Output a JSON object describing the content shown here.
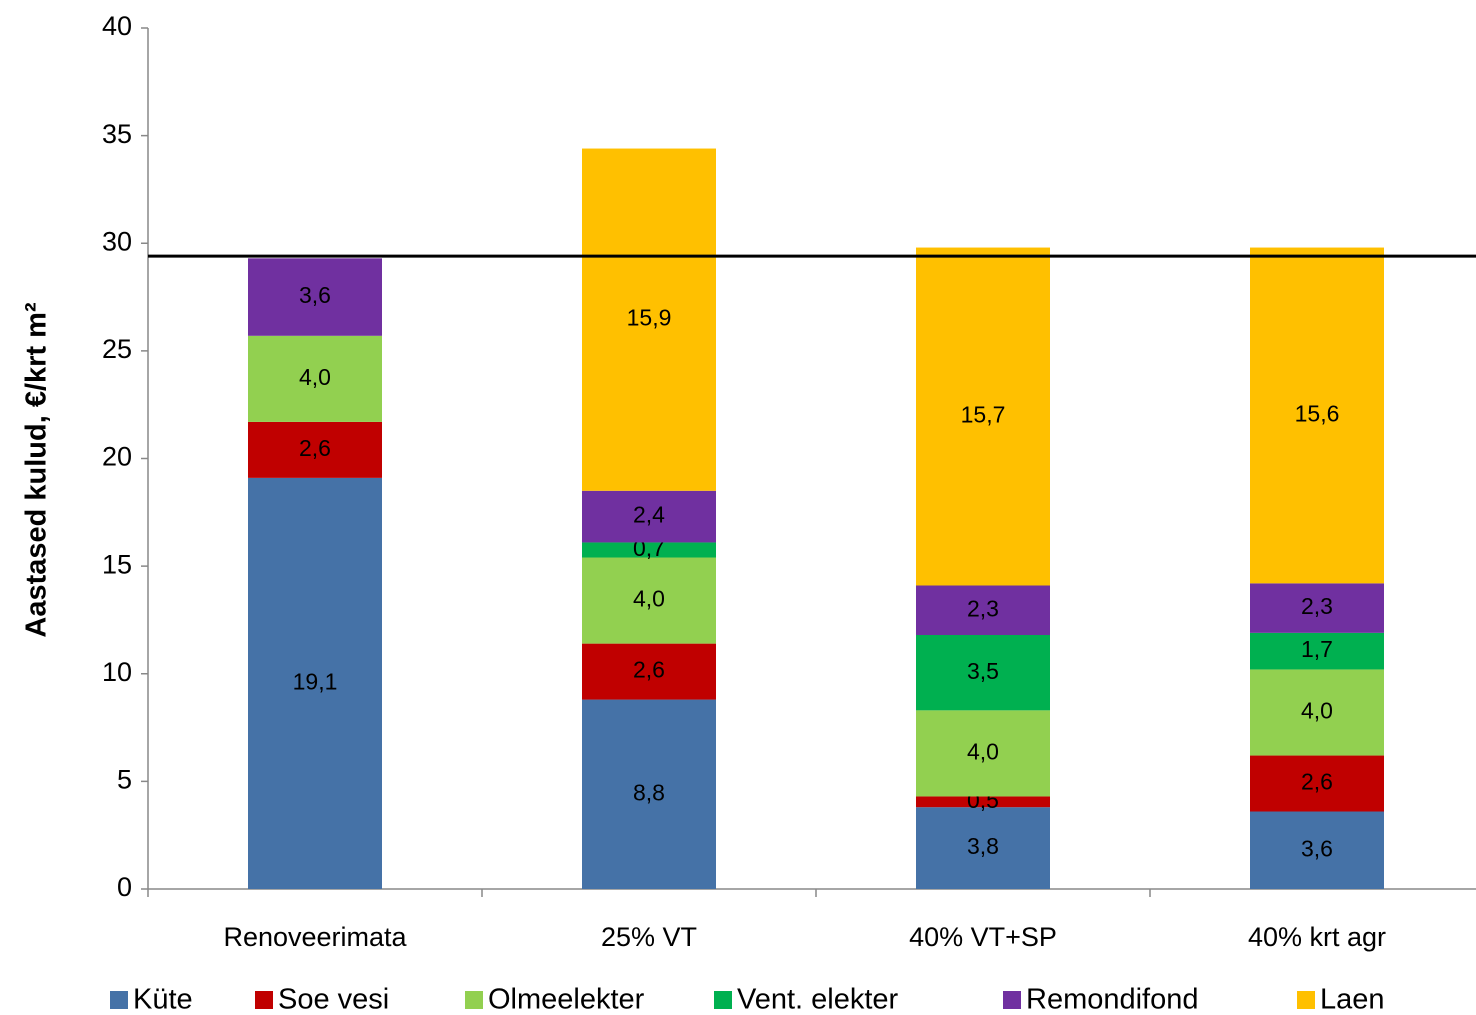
{
  "chart_data": {
    "type": "stacked_bar",
    "y_label": "Aastased kulud, €/krt m²",
    "categories": [
      "Renoveerimata",
      "25% VT",
      "40% VT+SP",
      "40% krt agr"
    ],
    "series": [
      {
        "name": "Küte",
        "color": "#4572a7",
        "values": [
          19.1,
          8.8,
          3.8,
          3.6
        ],
        "value_labels": [
          "19,1",
          "8,8",
          "3,8",
          "3,6"
        ]
      },
      {
        "name": "Soe vesi",
        "color": "#c00000",
        "values": [
          2.6,
          2.6,
          0.5,
          2.6
        ],
        "value_labels": [
          "2,6",
          "2,6",
          "0,5",
          "2,6"
        ]
      },
      {
        "name": "Olmeelekter",
        "color": "#92d050",
        "values": [
          4.0,
          4.0,
          4.0,
          4.0
        ],
        "value_labels": [
          "4,0",
          "4,0",
          "4,0",
          "4,0"
        ]
      },
      {
        "name": "Vent. elekter",
        "color": "#00b050",
        "values": [
          null,
          0.7,
          3.5,
          1.7
        ],
        "value_labels": [
          null,
          "0,7",
          "3,5",
          "1,7"
        ]
      },
      {
        "name": "Remondifond",
        "color": "#7030a0",
        "values": [
          3.6,
          2.4,
          2.3,
          2.3
        ],
        "value_labels": [
          "3,6",
          "2,4",
          "2,3",
          "2,3"
        ]
      },
      {
        "name": "Laen",
        "color": "#ffc000",
        "values": [
          null,
          15.9,
          15.7,
          15.6
        ],
        "value_labels": [
          null,
          "15,9",
          "15,7",
          "15,6"
        ]
      }
    ],
    "reference_line": 29.4,
    "ylim": [
      0,
      40
    ],
    "yticks": [
      0,
      5,
      10,
      15,
      20,
      25,
      30,
      35,
      40
    ],
    "legend": "bottom"
  }
}
